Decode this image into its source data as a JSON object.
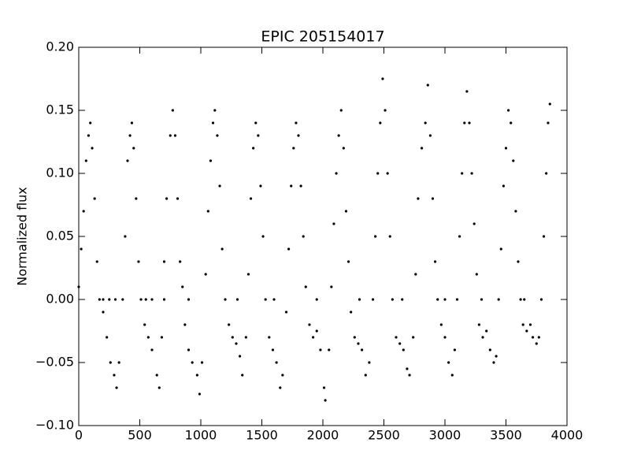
{
  "chart_data": {
    "type": "scatter",
    "title": "EPIC 205154017",
    "y_label": "Normalized flux",
    "color": "#000000",
    "x": [
      0,
      20,
      40,
      60,
      80,
      95,
      110,
      130,
      150,
      170,
      200,
      230,
      260,
      290,
      310,
      330,
      360,
      380,
      400,
      420,
      435,
      450,
      470,
      490,
      510,
      540,
      570,
      600,
      640,
      660,
      680,
      700,
      720,
      750,
      770,
      790,
      810,
      830,
      850,
      870,
      900,
      930,
      970,
      990,
      1010,
      1040,
      1060,
      1080,
      1100,
      1115,
      1135,
      1155,
      1175,
      1200,
      1230,
      1260,
      1290,
      1320,
      1340,
      1370,
      1390,
      1410,
      1430,
      1450,
      1470,
      1490,
      1510,
      1530,
      1560,
      1590,
      1620,
      1650,
      1670,
      1700,
      1720,
      1740,
      1760,
      1780,
      1800,
      1820,
      1840,
      1860,
      1890,
      1920,
      1950,
      1980,
      2010,
      2020,
      2050,
      2070,
      2090,
      2110,
      2130,
      2150,
      2170,
      2190,
      2210,
      2230,
      2260,
      2290,
      2320,
      2350,
      2380,
      2410,
      2430,
      2450,
      2470,
      2490,
      2510,
      2530,
      2550,
      2570,
      2600,
      2630,
      2660,
      2690,
      2710,
      2740,
      2760,
      2780,
      2810,
      2840,
      2860,
      2880,
      2900,
      2920,
      2940,
      2970,
      3000,
      3030,
      3060,
      3080,
      3100,
      3120,
      3140,
      3160,
      3180,
      3200,
      3220,
      3240,
      3260,
      3280,
      3310,
      3340,
      3370,
      3400,
      3420,
      3440,
      3460,
      3480,
      3500,
      3520,
      3540,
      3560,
      3580,
      3600,
      3620,
      3640,
      3670,
      3700,
      3720,
      3750,
      3770,
      3790,
      3810,
      3830,
      3845,
      3860,
      200,
      250,
      300,
      550,
      600,
      700,
      900,
      1300,
      1600,
      1950,
      2300,
      2650,
      3000,
      3300,
      3650
    ],
    "values": [
      0.01,
      0.04,
      0.07,
      0.11,
      0.13,
      0.14,
      0.12,
      0.08,
      0.03,
      0.0,
      -0.01,
      -0.03,
      -0.05,
      -0.06,
      -0.07,
      -0.05,
      0.0,
      0.05,
      0.11,
      0.13,
      0.14,
      0.12,
      0.08,
      0.03,
      0.0,
      -0.02,
      -0.03,
      -0.04,
      -0.06,
      -0.07,
      -0.03,
      0.03,
      0.08,
      0.13,
      0.15,
      0.13,
      0.08,
      0.03,
      0.01,
      -0.02,
      -0.04,
      -0.05,
      -0.06,
      -0.075,
      -0.05,
      0.02,
      0.07,
      0.11,
      0.14,
      0.15,
      0.13,
      0.09,
      0.04,
      0.0,
      -0.02,
      -0.03,
      -0.035,
      -0.045,
      -0.06,
      -0.03,
      0.02,
      0.08,
      0.12,
      0.14,
      0.13,
      0.09,
      0.05,
      0.0,
      -0.03,
      -0.04,
      -0.05,
      -0.07,
      -0.06,
      -0.01,
      0.04,
      0.09,
      0.12,
      0.14,
      0.13,
      0.09,
      0.05,
      0.01,
      -0.02,
      -0.03,
      -0.025,
      -0.04,
      -0.07,
      -0.08,
      -0.04,
      0.01,
      0.06,
      0.1,
      0.13,
      0.15,
      0.12,
      0.07,
      0.03,
      -0.01,
      -0.03,
      -0.035,
      -0.04,
      -0.06,
      -0.05,
      0.0,
      0.05,
      0.1,
      0.14,
      0.175,
      0.15,
      0.1,
      0.05,
      0.0,
      -0.03,
      -0.035,
      -0.04,
      -0.055,
      -0.06,
      -0.03,
      0.02,
      0.08,
      0.12,
      0.14,
      0.17,
      0.13,
      0.08,
      0.03,
      0.0,
      -0.02,
      -0.03,
      -0.05,
      -0.06,
      -0.04,
      0.0,
      0.05,
      0.1,
      0.14,
      0.165,
      0.14,
      0.1,
      0.06,
      0.02,
      -0.02,
      -0.03,
      -0.025,
      -0.04,
      -0.05,
      -0.045,
      0.0,
      0.04,
      0.09,
      0.12,
      0.15,
      0.14,
      0.11,
      0.07,
      0.03,
      0.0,
      -0.02,
      -0.025,
      -0.02,
      -0.03,
      -0.035,
      -0.03,
      0.0,
      0.05,
      0.1,
      0.14,
      0.155,
      0,
      0,
      0,
      0,
      0,
      0,
      0,
      0,
      0,
      0,
      0,
      0,
      0,
      0,
      0
    ],
    "xlim": [
      0,
      4000
    ],
    "xticks": [
      0,
      500,
      1000,
      1500,
      2000,
      2500,
      3000,
      3500,
      4000
    ],
    "ylim": [
      -0.1,
      0.2
    ],
    "yticks": [
      {
        "value": -0.1,
        "label": "−0.10"
      },
      {
        "value": -0.05,
        "label": "−0.05"
      },
      {
        "value": 0,
        "label": "0.00"
      },
      {
        "value": 0.05,
        "label": "0.05"
      },
      {
        "value": 0.1,
        "label": "0.10"
      },
      {
        "value": 0.15,
        "label": "0.15"
      },
      {
        "value": 0.2,
        "label": "0.20"
      }
    ]
  }
}
